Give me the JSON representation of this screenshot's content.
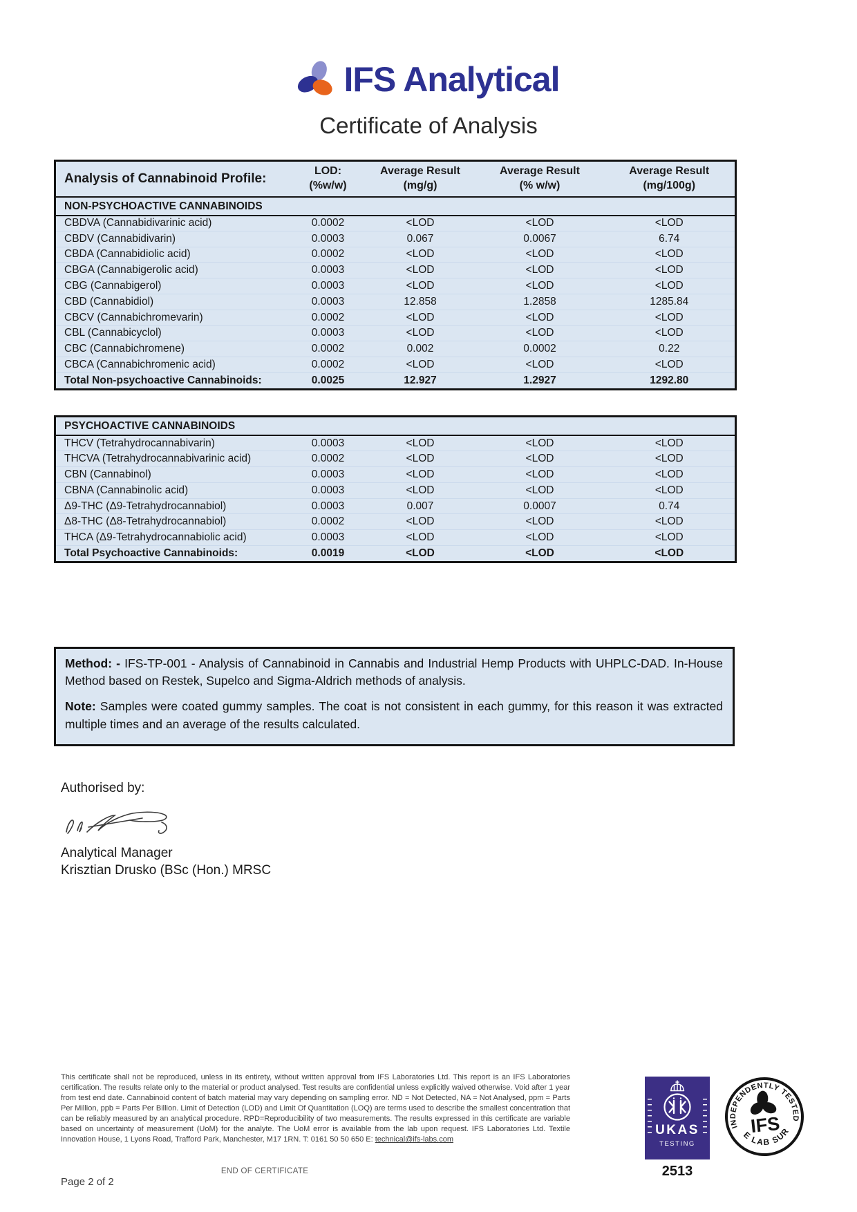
{
  "header": {
    "brand": "IFS Analytical",
    "doc_title": "Certificate of Analysis"
  },
  "table": {
    "profile_label": "Analysis of Cannabinoid Profile:",
    "col_headers": [
      {
        "line1": "LOD:",
        "line2": "(%w/w)"
      },
      {
        "line1": "Average Result",
        "line2": "(mg/g)"
      },
      {
        "line1": "Average Result",
        "line2": "(% w/w)"
      },
      {
        "line1": "Average Result",
        "line2": "(mg/100g)"
      }
    ],
    "sections": [
      {
        "title": "NON-PSYCHOACTIVE CANNABINOIDS",
        "rows": [
          {
            "name": "CBDVA (Cannabidivarinic acid)",
            "values": [
              "0.0002",
              "<LOD",
              "<LOD",
              "<LOD"
            ]
          },
          {
            "name": "CBDV (Cannabidivarin)",
            "values": [
              "0.0003",
              "0.067",
              "0.0067",
              "6.74"
            ]
          },
          {
            "name": "CBDA (Cannabidiolic acid)",
            "values": [
              "0.0002",
              "<LOD",
              "<LOD",
              "<LOD"
            ]
          },
          {
            "name": "CBGA (Cannabigerolic acid)",
            "values": [
              "0.0003",
              "<LOD",
              "<LOD",
              "<LOD"
            ]
          },
          {
            "name": "CBG (Cannabigerol)",
            "values": [
              "0.0003",
              "<LOD",
              "<LOD",
              "<LOD"
            ]
          },
          {
            "name": "CBD (Cannabidiol)",
            "values": [
              "0.0003",
              "12.858",
              "1.2858",
              "1285.84"
            ]
          },
          {
            "name": "CBCV (Cannabichromevarin)",
            "values": [
              "0.0002",
              "<LOD",
              "<LOD",
              "<LOD"
            ]
          },
          {
            "name": "CBL (Cannabicyclol)",
            "values": [
              "0.0003",
              "<LOD",
              "<LOD",
              "<LOD"
            ]
          },
          {
            "name": "CBC (Cannabichromene)",
            "values": [
              "0.0002",
              "0.002",
              "0.0002",
              "0.22"
            ]
          },
          {
            "name": "CBCA (Cannabichromenic acid)",
            "values": [
              "0.0002",
              "<LOD",
              "<LOD",
              "<LOD"
            ]
          }
        ],
        "total": {
          "name": "Total Non-psychoactive Cannabinoids:",
          "values": [
            "0.0025",
            "12.927",
            "1.2927",
            "1292.80"
          ]
        }
      },
      {
        "title": "PSYCHOACTIVE CANNABINOIDS",
        "rows": [
          {
            "name": "THCV (Tetrahydrocannabivarin)",
            "values": [
              "0.0003",
              "<LOD",
              "<LOD",
              "<LOD"
            ]
          },
          {
            "name": "THCVA (Tetrahydrocannabivarinic acid)",
            "values": [
              "0.0002",
              "<LOD",
              "<LOD",
              "<LOD"
            ]
          },
          {
            "name": "CBN (Cannabinol)",
            "values": [
              "0.0003",
              "<LOD",
              "<LOD",
              "<LOD"
            ]
          },
          {
            "name": "CBNA (Cannabinolic acid)",
            "values": [
              "0.0003",
              "<LOD",
              "<LOD",
              "<LOD"
            ]
          },
          {
            "name": "Δ9-THC (Δ9-Tetrahydrocannabiol)",
            "values": [
              "0.0003",
              "0.007",
              "0.0007",
              "0.74"
            ]
          },
          {
            "name": "Δ8-THC (Δ8-Tetrahydrocannabiol)",
            "values": [
              "0.0002",
              "<LOD",
              "<LOD",
              "<LOD"
            ]
          },
          {
            "name": "THCA (Δ9-Tetrahydrocannabiolic acid)",
            "values": [
              "0.0003",
              "<LOD",
              "<LOD",
              "<LOD"
            ]
          }
        ],
        "total": {
          "name": "Total Psychoactive Cannabinoids:",
          "values": [
            "0.0019",
            "<LOD",
            "<LOD",
            "<LOD"
          ]
        }
      }
    ]
  },
  "method_box": {
    "method_label": "Method: -",
    "method_text": "IFS-TP-001 - Analysis of Cannabinoid in Cannabis and Industrial Hemp Products with UHPLC-DAD. In-House Method based on Restek, Supelco and Sigma-Aldrich methods of analysis.",
    "note_label": "Note:",
    "note_text": "Samples were coated gummy samples. The coat is not consistent in each gummy, for this reason it was extracted multiple times and an average of the results calculated."
  },
  "authorisation": {
    "label": "Authorised by:",
    "role": "Analytical Manager",
    "name": "Krisztian Drusko (BSc (Hon.) MRSC"
  },
  "footer": {
    "disclaimer": "This certificate shall not be reproduced, unless in its entirety, without written approval from IFS Laboratories Ltd. This report is an IFS Laboratories certification. The results relate only to the material or product analysed. Test results are confidential unless explicitly waived otherwise. Void after 1 year from test end date. Cannabinoid content of batch material may vary depending on sampling error. ND = Not Detected, NA = Not Analysed, ppm = Parts Per Million, ppb = Parts Per Billion. Limit of Detection (LOD) and Limit Of Quantitation (LOQ) are terms used to describe the smallest concentration that can be reliably measured by an analytical procedure. RPD=Reproducibility of two measurements. The results expressed in this certificate are variable based on uncertainty of measurement (UoM) for the analyte. The UoM error is available from the lab upon request. IFS Laboratories Ltd. Textile Innovation House, 1 Lyons Road, Trafford Park, Manchester, M17 1RN. T: 0161 50 50 650 E: ",
    "email": "technical@ifs-labs.com",
    "end_text": "END OF CERTIFICATE",
    "page": "Page 2 of 2"
  },
  "ukas": {
    "name": "UKAS",
    "sub": "TESTING",
    "number": "2513"
  },
  "stamp": {
    "top": "INDEPENDENTLY TESTED",
    "center": "IFS",
    "bottom": "BE LAB SURE"
  },
  "colors": {
    "brand_navy": "#2d3192",
    "brand_lavender": "#8c8fce",
    "brand_orange": "#e8641c",
    "table_bg": "#dbe6f2",
    "ukas_purple": "#3c2f85"
  }
}
